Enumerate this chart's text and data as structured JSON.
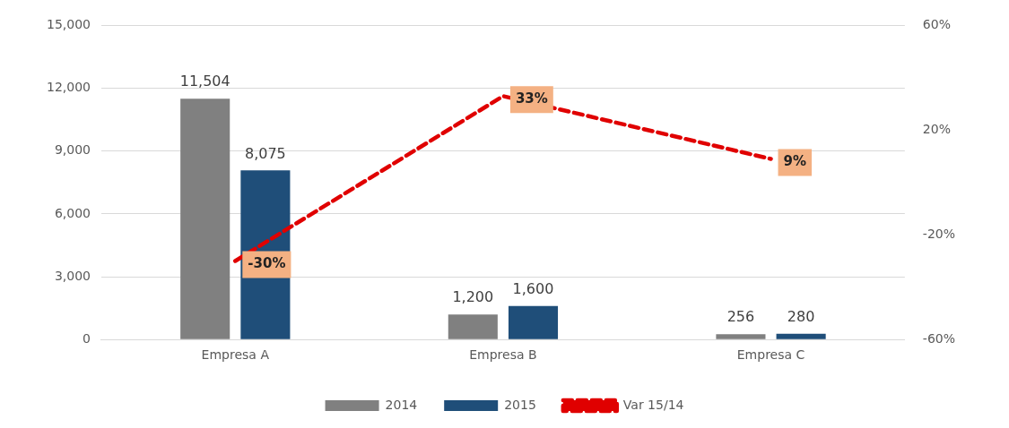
{
  "chart_data": {
    "type": "bar",
    "categories": [
      "Empresa A",
      "Empresa B",
      "Empresa C"
    ],
    "series": [
      {
        "name": "2014",
        "color": "#808080",
        "values": [
          11504,
          1200,
          256
        ],
        "value_labels": [
          "11,504",
          "1,200",
          "256"
        ]
      },
      {
        "name": "2015",
        "color": "#1f4e79",
        "values": [
          8075,
          1600,
          280
        ],
        "value_labels": [
          "8,075",
          "1,600",
          "280"
        ]
      },
      {
        "name": "Var 15/14",
        "type": "line",
        "axis": "y2",
        "color": "#e00000",
        "line_style": "dashed",
        "marker": "none",
        "values": [
          -30,
          33,
          9
        ],
        "value_labels": [
          "-30%",
          "33%",
          "9%"
        ]
      }
    ],
    "ylim": [
      0,
      15000
    ],
    "yticks": [
      {
        "value": 0,
        "label": "0"
      },
      {
        "value": 3000,
        "label": "3,000"
      },
      {
        "value": 6000,
        "label": "6,000"
      },
      {
        "value": 9000,
        "label": "9,000"
      },
      {
        "value": 12000,
        "label": "12,000"
      },
      {
        "value": 15000,
        "label": "15,000"
      }
    ],
    "y2lim": [
      -60,
      60
    ],
    "y2ticks": [
      {
        "value": -60,
        "label": "-60%"
      },
      {
        "value": -20,
        "label": "-20%"
      },
      {
        "value": 20,
        "label": "20%"
      },
      {
        "value": 60,
        "label": "60%"
      }
    ],
    "grid": "y",
    "legend": "bottom"
  }
}
